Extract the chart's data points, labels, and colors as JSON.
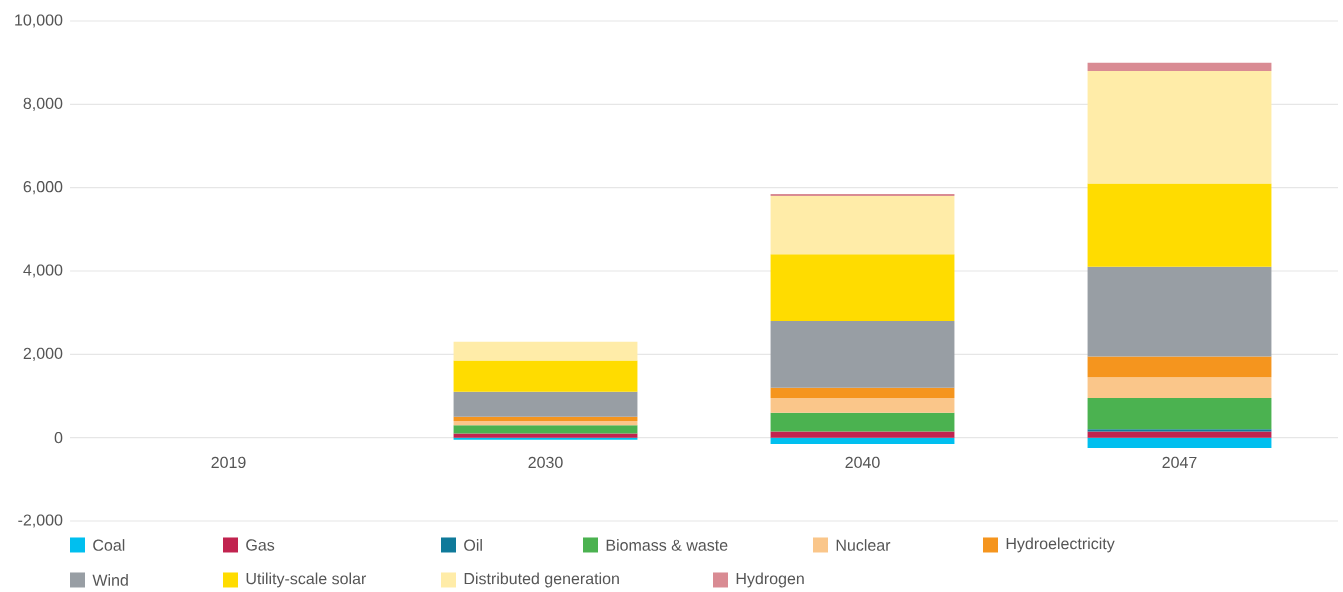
{
  "chart_data": {
    "type": "bar",
    "stacked": true,
    "categories": [
      "2019",
      "2030",
      "2040",
      "2047"
    ],
    "ylim": [
      -2000,
      10000
    ],
    "yticks": [
      {
        "value": -2000,
        "label": "-2,000"
      },
      0,
      {
        "value": 2000,
        "label": "2,000"
      },
      {
        "value": 4000,
        "label": "4,000"
      },
      {
        "value": 6000,
        "label": "6,000"
      },
      {
        "value": 8000,
        "label": "8,000"
      },
      {
        "value": 10000,
        "label": "10,000"
      }
    ],
    "grid": "y",
    "legend": "bottom",
    "series": [
      {
        "name": "Coal",
        "color": "#00bfef",
        "values": [
          0,
          -50,
          -150,
          -250
        ]
      },
      {
        "name": "Gas",
        "color": "#c1234f",
        "values": [
          0,
          100,
          150,
          150
        ]
      },
      {
        "name": "Oil",
        "color": "#0f7a9a",
        "values": [
          0,
          0,
          0,
          50
        ]
      },
      {
        "name": "Biomass & waste",
        "color": "#4bb250",
        "values": [
          0,
          200,
          450,
          750
        ]
      },
      {
        "name": "Nuclear",
        "color": "#fac68a",
        "values": [
          0,
          100,
          350,
          500
        ]
      },
      {
        "name": "Hydroelectricity",
        "color": "#f5951e",
        "values": [
          0,
          100,
          250,
          500
        ]
      },
      {
        "name": "Wind",
        "color": "#989ea4",
        "values": [
          0,
          600,
          1600,
          2150
        ]
      },
      {
        "name": "Utility-scale solar",
        "color": "#ffdc00",
        "values": [
          0,
          750,
          1600,
          2000
        ]
      },
      {
        "name": "Distributed generation",
        "color": "#ffeca8",
        "values": [
          0,
          450,
          1400,
          2700
        ]
      },
      {
        "name": "Hydrogen",
        "color": "#d98b93",
        "values": [
          0,
          0,
          50,
          200
        ]
      }
    ]
  }
}
